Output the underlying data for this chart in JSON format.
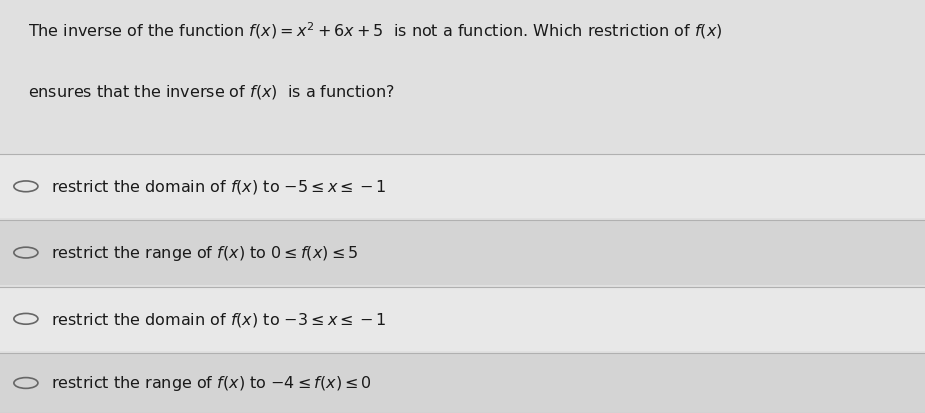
{
  "background_color": "#e0e0e0",
  "option_bg_light": "#e8e8e8",
  "option_bg_dark": "#d4d4d4",
  "text_color": "#1a1a1a",
  "question_line1": "The inverse of the function $f(x) = x^2 + 6x + 5$  is not a function. Which restriction of $f(x)$",
  "question_line2": "ensures that the inverse of $f(x)$  is a function?",
  "options": [
    "restrict the domain of $f(x)$ to $-5 \\leq x \\leq -1$",
    "restrict the range of $f(x)$ to $0 \\leq f(x) \\leq 5$",
    "restrict the domain of $f(x)$ to $-3 \\leq x \\leq -1$",
    "restrict the range of $f(x)$ to $-4 \\leq f(x) \\leq 0$"
  ],
  "fig_width": 9.25,
  "fig_height": 4.14,
  "dpi": 100
}
